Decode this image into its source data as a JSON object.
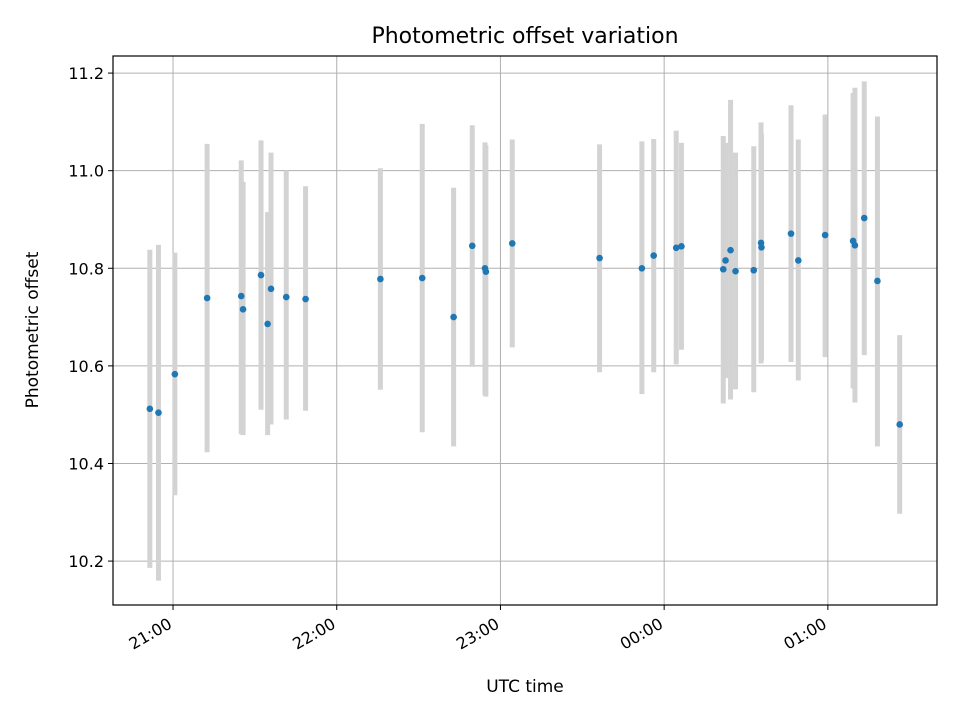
{
  "chart_data": {
    "type": "scatter",
    "title": "Photometric offset variation",
    "xlabel": "UTC time",
    "ylabel": "Photometric offset",
    "x_start": "2000-01-01T20:38",
    "x_end": "2000-01-02T01:40",
    "x_ticks": [
      {
        "t": "2000-01-01T21:00",
        "label": "21:00"
      },
      {
        "t": "2000-01-01T22:00",
        "label": "22:00"
      },
      {
        "t": "2000-01-01T23:00",
        "label": "23:00"
      },
      {
        "t": "2000-01-02T00:00",
        "label": "00:00"
      },
      {
        "t": "2000-01-02T01:00",
        "label": "01:00"
      }
    ],
    "y_ticks": [
      10.2,
      10.4,
      10.6,
      10.8,
      11.0,
      11.2
    ],
    "ylim": [
      10.11,
      11.235
    ],
    "grid": true,
    "marker_color": "#1f77b4",
    "errorbar_color": "#d3d3d3",
    "points": [
      {
        "t": "2000-01-01T20:51:30",
        "y": 10.512,
        "lo": 10.186,
        "hi": 10.838
      },
      {
        "t": "2000-01-01T20:54:40",
        "y": 10.504,
        "lo": 10.16,
        "hi": 10.848
      },
      {
        "t": "2000-01-01T21:00:40",
        "y": 10.583,
        "lo": 10.335,
        "hi": 10.832
      },
      {
        "t": "2000-01-01T21:12:30",
        "y": 10.739,
        "lo": 10.423,
        "hi": 11.055
      },
      {
        "t": "2000-01-01T21:25:00",
        "y": 10.743,
        "lo": 10.46,
        "hi": 11.021
      },
      {
        "t": "2000-01-01T21:25:40",
        "y": 10.716,
        "lo": 10.458,
        "hi": 10.977
      },
      {
        "t": "2000-01-01T21:32:15",
        "y": 10.786,
        "lo": 10.51,
        "hi": 11.062
      },
      {
        "t": "2000-01-01T21:34:40",
        "y": 10.686,
        "lo": 10.458,
        "hi": 10.915
      },
      {
        "t": "2000-01-01T21:35:55",
        "y": 10.758,
        "lo": 10.48,
        "hi": 11.037
      },
      {
        "t": "2000-01-01T21:41:30",
        "y": 10.741,
        "lo": 10.49,
        "hi": 11.0
      },
      {
        "t": "2000-01-01T21:48:35",
        "y": 10.737,
        "lo": 10.508,
        "hi": 10.968
      },
      {
        "t": "2000-01-01T22:16:00",
        "y": 10.778,
        "lo": 10.551,
        "hi": 11.005
      },
      {
        "t": "2000-01-01T22:31:20",
        "y": 10.78,
        "lo": 10.464,
        "hi": 11.096
      },
      {
        "t": "2000-01-01T22:42:50",
        "y": 10.7,
        "lo": 10.435,
        "hi": 10.965
      },
      {
        "t": "2000-01-01T22:49:40",
        "y": 10.846,
        "lo": 10.598,
        "hi": 11.093
      },
      {
        "t": "2000-01-01T22:54:20",
        "y": 10.8,
        "lo": 10.54,
        "hi": 11.058
      },
      {
        "t": "2000-01-01T22:54:40",
        "y": 10.793,
        "lo": 10.537,
        "hi": 11.052
      },
      {
        "t": "2000-01-01T23:04:20",
        "y": 10.851,
        "lo": 10.638,
        "hi": 11.064
      },
      {
        "t": "2000-01-01T23:36:20",
        "y": 10.821,
        "lo": 10.587,
        "hi": 11.054
      },
      {
        "t": "2000-01-01T23:51:50",
        "y": 10.8,
        "lo": 10.542,
        "hi": 11.06
      },
      {
        "t": "2000-01-01T23:56:10",
        "y": 10.826,
        "lo": 10.587,
        "hi": 11.065
      },
      {
        "t": "2000-01-02T00:04:25",
        "y": 10.842,
        "lo": 10.603,
        "hi": 11.082
      },
      {
        "t": "2000-01-02T00:06:20",
        "y": 10.845,
        "lo": 10.633,
        "hi": 11.057
      },
      {
        "t": "2000-01-02T00:21:40",
        "y": 10.798,
        "lo": 10.523,
        "hi": 11.071
      },
      {
        "t": "2000-01-02T00:22:30",
        "y": 10.816,
        "lo": 10.575,
        "hi": 11.057
      },
      {
        "t": "2000-01-02T00:24:20",
        "y": 10.837,
        "lo": 10.531,
        "hi": 11.145
      },
      {
        "t": "2000-01-02T00:26:10",
        "y": 10.794,
        "lo": 10.552,
        "hi": 11.037
      },
      {
        "t": "2000-01-02T00:32:50",
        "y": 10.796,
        "lo": 10.546,
        "hi": 11.05
      },
      {
        "t": "2000-01-02T00:35:30",
        "y": 10.852,
        "lo": 10.605,
        "hi": 11.099
      },
      {
        "t": "2000-01-02T00:35:40",
        "y": 10.843,
        "lo": 10.61,
        "hi": 11.075
      },
      {
        "t": "2000-01-02T00:46:30",
        "y": 10.871,
        "lo": 10.608,
        "hi": 11.134
      },
      {
        "t": "2000-01-02T00:49:10",
        "y": 10.816,
        "lo": 10.57,
        "hi": 11.064
      },
      {
        "t": "2000-01-02T00:59:00",
        "y": 10.868,
        "lo": 10.618,
        "hi": 11.115
      },
      {
        "t": "2000-01-02T01:09:15",
        "y": 10.856,
        "lo": 10.554,
        "hi": 11.159
      },
      {
        "t": "2000-01-02T01:09:55",
        "y": 10.847,
        "lo": 10.525,
        "hi": 11.17
      },
      {
        "t": "2000-01-02T01:13:20",
        "y": 10.903,
        "lo": 10.622,
        "hi": 11.183
      },
      {
        "t": "2000-01-02T01:18:10",
        "y": 10.774,
        "lo": 10.435,
        "hi": 11.111
      },
      {
        "t": "2000-01-02T01:26:20",
        "y": 10.48,
        "lo": 10.297,
        "hi": 10.663
      }
    ]
  }
}
